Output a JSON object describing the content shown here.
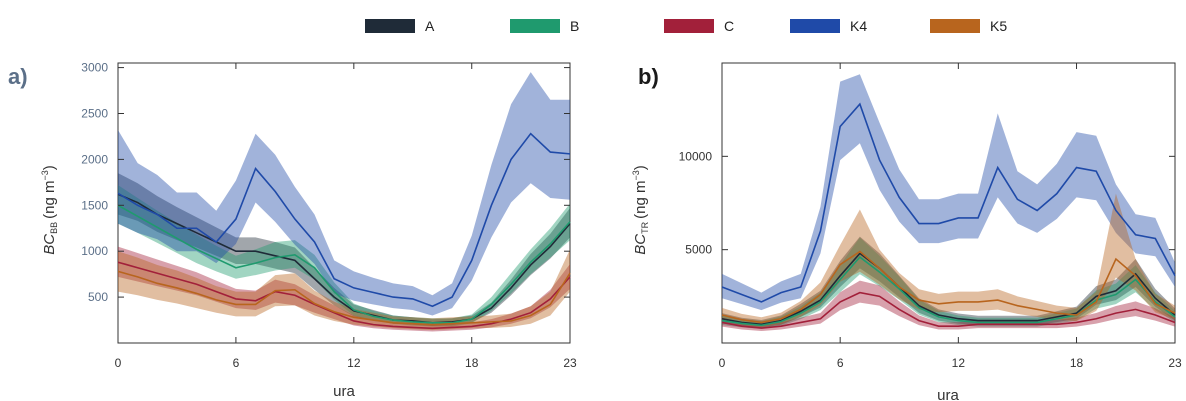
{
  "legend": {
    "placement": "top-center",
    "items": [
      {
        "label": "A",
        "color": "#1f2b38"
      },
      {
        "label": "B",
        "color": "#1f9a6e"
      },
      {
        "label": "C",
        "color": "#a2203a"
      },
      {
        "label": "K4",
        "color": "#1f4aa8"
      },
      {
        "label": "K5",
        "color": "#b8651e"
      }
    ]
  },
  "chart_data": [
    {
      "type": "line",
      "panel_label": "a)",
      "ylabel_main": "BC",
      "ylabel_sub": "BB",
      "ylabel_unit": "(ng m",
      "ylabel_exp": "−3",
      "ylabel_close": ")",
      "xlabel": "ura",
      "xlim": [
        0,
        23
      ],
      "ylim": [
        0,
        3050
      ],
      "xticks": [
        0,
        6,
        12,
        18,
        23
      ],
      "yticks": [
        500,
        1000,
        1500,
        2000,
        2500,
        3000
      ],
      "x": [
        0,
        1,
        2,
        3,
        4,
        5,
        6,
        7,
        8,
        9,
        10,
        11,
        12,
        13,
        14,
        15,
        16,
        17,
        18,
        19,
        20,
        21,
        22,
        23
      ],
      "series": [
        {
          "name": "A",
          "color": "#1f2b38",
          "values": [
            1620,
            1530,
            1400,
            1300,
            1200,
            1100,
            1000,
            1000,
            950,
            900,
            700,
            500,
            350,
            300,
            250,
            240,
            220,
            230,
            260,
            380,
            600,
            850,
            1050,
            1300
          ],
          "lower": [
            1400,
            1330,
            1210,
            1120,
            1040,
            950,
            860,
            860,
            810,
            760,
            580,
            410,
            290,
            250,
            210,
            200,
            185,
            195,
            225,
            330,
            520,
            740,
            920,
            1150
          ],
          "upper": [
            1850,
            1740,
            1600,
            1480,
            1370,
            1260,
            1150,
            1150,
            1100,
            1040,
            820,
            600,
            420,
            360,
            300,
            280,
            260,
            270,
            300,
            440,
            690,
            970,
            1190,
            1470
          ]
        },
        {
          "name": "B",
          "color": "#1f9a6e",
          "values": [
            1500,
            1380,
            1260,
            1140,
            1020,
            920,
            820,
            870,
            930,
            960,
            820,
            560,
            360,
            290,
            250,
            230,
            220,
            220,
            260,
            420,
            640,
            880,
            1080,
            1320
          ],
          "lower": [
            1300,
            1200,
            1090,
            980,
            870,
            780,
            700,
            740,
            790,
            820,
            690,
            470,
            300,
            240,
            210,
            190,
            180,
            180,
            215,
            350,
            540,
            750,
            930,
            1120
          ],
          "upper": [
            1720,
            1580,
            1440,
            1310,
            1180,
            1060,
            950,
            1020,
            1100,
            1120,
            960,
            660,
            430,
            350,
            300,
            280,
            270,
            270,
            310,
            500,
            760,
            1020,
            1250,
            1520
          ]
        },
        {
          "name": "C",
          "color": "#a2203a",
          "values": [
            880,
            820,
            760,
            700,
            640,
            560,
            480,
            460,
            560,
            520,
            420,
            330,
            240,
            200,
            180,
            170,
            160,
            170,
            180,
            210,
            260,
            330,
            480,
            720
          ],
          "lower": [
            720,
            670,
            620,
            570,
            520,
            450,
            380,
            360,
            440,
            410,
            330,
            260,
            190,
            160,
            145,
            135,
            125,
            135,
            145,
            170,
            210,
            270,
            390,
            590
          ],
          "upper": [
            1050,
            980,
            910,
            840,
            770,
            680,
            590,
            570,
            690,
            640,
            520,
            410,
            300,
            250,
            225,
            210,
            200,
            210,
            225,
            260,
            320,
            400,
            580,
            860
          ]
        },
        {
          "name": "K4",
          "color": "#1f4aa8",
          "values": [
            1630,
            1500,
            1400,
            1250,
            1250,
            1100,
            1350,
            1900,
            1650,
            1350,
            1100,
            700,
            600,
            550,
            500,
            480,
            400,
            500,
            900,
            1500,
            2000,
            2280,
            2080,
            2060
          ],
          "lower": [
            1300,
            1200,
            1130,
            1000,
            1000,
            870,
            1080,
            1530,
            1320,
            1070,
            860,
            540,
            460,
            420,
            380,
            360,
            300,
            380,
            680,
            1150,
            1530,
            1740,
            1580,
            1560
          ],
          "upper": [
            2320,
            1960,
            1830,
            1640,
            1640,
            1440,
            1770,
            2280,
            2050,
            1700,
            1400,
            900,
            780,
            710,
            650,
            620,
            520,
            650,
            1170,
            1940,
            2600,
            2950,
            2650,
            2650
          ]
        },
        {
          "name": "K5",
          "color": "#b8651e",
          "values": [
            780,
            720,
            650,
            600,
            540,
            470,
            420,
            420,
            570,
            580,
            430,
            340,
            280,
            250,
            220,
            210,
            200,
            210,
            220,
            230,
            240,
            300,
            420,
            760
          ],
          "lower": [
            560,
            520,
            470,
            430,
            380,
            330,
            290,
            290,
            400,
            410,
            300,
            240,
            200,
            180,
            160,
            150,
            140,
            150,
            160,
            165,
            175,
            210,
            300,
            560
          ],
          "upper": [
            1000,
            930,
            850,
            790,
            710,
            620,
            560,
            560,
            740,
            760,
            570,
            450,
            370,
            330,
            290,
            280,
            270,
            280,
            290,
            300,
            320,
            400,
            560,
            1020
          ]
        }
      ]
    },
    {
      "type": "line",
      "panel_label": "b)",
      "ylabel_main": "BC",
      "ylabel_sub": "TR",
      "ylabel_unit": "(ng m",
      "ylabel_exp": "−3",
      "ylabel_close": ")",
      "xlabel": "ura",
      "xlim": [
        0,
        23
      ],
      "ylim": [
        0,
        15000
      ],
      "xticks": [
        0,
        6,
        12,
        18,
        23
      ],
      "yticks": [
        5000,
        10000
      ],
      "x": [
        0,
        1,
        2,
        3,
        4,
        5,
        6,
        7,
        8,
        9,
        10,
        11,
        12,
        13,
        14,
        15,
        16,
        17,
        18,
        19,
        20,
        21,
        22,
        23
      ],
      "series": [
        {
          "name": "A",
          "color": "#1f2b38",
          "values": [
            1300,
            1100,
            1000,
            1200,
            1700,
            2300,
            3600,
            4800,
            4000,
            3000,
            2000,
            1500,
            1300,
            1200,
            1200,
            1200,
            1200,
            1400,
            1600,
            2500,
            2800,
            3700,
            2400,
            1500
          ],
          "lower": [
            1050,
            900,
            820,
            980,
            1400,
            1900,
            3000,
            4000,
            3300,
            2450,
            1620,
            1200,
            1040,
            960,
            960,
            960,
            960,
            1120,
            1300,
            2050,
            2300,
            3000,
            1950,
            1200
          ],
          "upper": [
            1600,
            1350,
            1230,
            1480,
            2100,
            2800,
            4400,
            5700,
            4800,
            3600,
            2400,
            1800,
            1580,
            1460,
            1460,
            1460,
            1460,
            1700,
            1950,
            3050,
            3400,
            4500,
            2900,
            1850
          ]
        },
        {
          "name": "B",
          "color": "#1f9a6e",
          "values": [
            1200,
            1050,
            950,
            1150,
            1600,
            2200,
            3400,
            4600,
            3800,
            2900,
            1900,
            1400,
            1200,
            1100,
            1100,
            1100,
            1100,
            1300,
            1500,
            2300,
            2600,
            3400,
            2200,
            1400
          ],
          "lower": [
            960,
            840,
            760,
            920,
            1280,
            1760,
            2720,
            3680,
            3040,
            2320,
            1520,
            1120,
            960,
            880,
            880,
            880,
            880,
            1040,
            1200,
            1840,
            2080,
            2720,
            1760,
            1120
          ],
          "upper": [
            1480,
            1290,
            1170,
            1420,
            1970,
            2700,
            4180,
            5650,
            4670,
            3560,
            2330,
            1720,
            1470,
            1350,
            1350,
            1350,
            1350,
            1600,
            1840,
            2820,
            3190,
            4170,
            2700,
            1720
          ]
        },
        {
          "name": "C",
          "color": "#a2203a",
          "values": [
            1100,
            900,
            800,
            900,
            1100,
            1300,
            2200,
            2700,
            2500,
            1800,
            1200,
            900,
            900,
            1000,
            1000,
            1000,
            1000,
            1000,
            1100,
            1300,
            1600,
            1800,
            1500,
            1100
          ],
          "lower": [
            880,
            720,
            640,
            720,
            880,
            1040,
            1760,
            2160,
            2000,
            1440,
            960,
            720,
            720,
            800,
            800,
            800,
            800,
            800,
            880,
            1040,
            1280,
            1440,
            1200,
            880
          ],
          "upper": [
            1360,
            1110,
            990,
            1110,
            1360,
            1610,
            2720,
            3340,
            3090,
            2230,
            1480,
            1110,
            1110,
            1240,
            1240,
            1240,
            1240,
            1240,
            1360,
            1610,
            1980,
            2230,
            1860,
            1360
          ]
        },
        {
          "name": "K4",
          "color": "#1f4aa8",
          "values": [
            3000,
            2600,
            2200,
            2700,
            3000,
            6000,
            11600,
            12800,
            9800,
            7800,
            6400,
            6400,
            6700,
            6700,
            9400,
            7700,
            7100,
            8000,
            9400,
            9200,
            7100,
            5800,
            5600,
            3600
          ],
          "lower": [
            2400,
            2080,
            1760,
            2160,
            2400,
            4800,
            9800,
            10700,
            8200,
            6500,
            5350,
            5350,
            5600,
            5600,
            7800,
            6400,
            5900,
            6650,
            7800,
            7650,
            5900,
            4800,
            4650,
            3000
          ],
          "upper": [
            3700,
            3200,
            2700,
            3300,
            3700,
            7300,
            14000,
            14400,
            11800,
            9300,
            7700,
            7700,
            8000,
            8000,
            12300,
            9200,
            8500,
            9600,
            11300,
            11100,
            8500,
            6900,
            6700,
            4300
          ]
        },
        {
          "name": "K5",
          "color": "#b8651e",
          "values": [
            1500,
            1250,
            1100,
            1300,
            1800,
            2600,
            4200,
            4900,
            4000,
            3000,
            2300,
            2100,
            2200,
            2200,
            2300,
            2000,
            1800,
            1600,
            1500,
            2200,
            4500,
            3600,
            2100,
            1600
          ],
          "lower": [
            1170,
            970,
            860,
            1010,
            1400,
            2030,
            3280,
            3820,
            3120,
            2340,
            1790,
            1640,
            1720,
            1720,
            1790,
            1560,
            1400,
            1250,
            1170,
            1720,
            3510,
            2810,
            1640,
            1250
          ],
          "upper": [
            1880,
            1560,
            1380,
            1630,
            2250,
            3250,
            5250,
            7150,
            5000,
            3750,
            2880,
            2630,
            2750,
            2750,
            2880,
            2500,
            2250,
            2000,
            1880,
            2750,
            8000,
            4500,
            2630,
            2000
          ]
        }
      ]
    }
  ]
}
